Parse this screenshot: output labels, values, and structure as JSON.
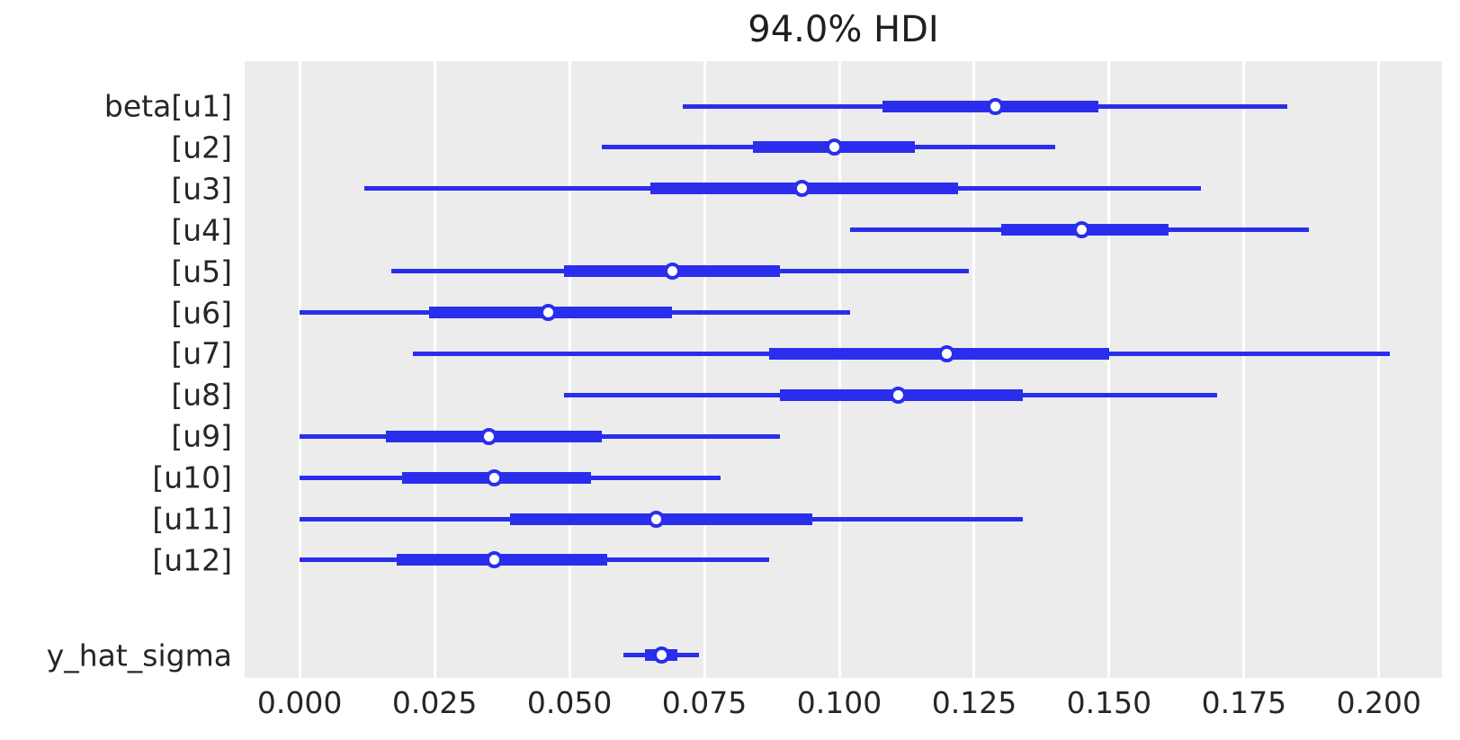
{
  "title": "94.0% HDI",
  "colors": {
    "line": "#2a2eec",
    "plot_background": "#ececec",
    "grid": "#ffffff",
    "text": "#262626",
    "figure_background": "#ffffff"
  },
  "chart_data": {
    "type": "forest",
    "title": "94.0% HDI",
    "orientation": "horizontal",
    "xlim": [
      -0.0102,
      0.2117
    ],
    "x_ticks": [
      0.0,
      0.025,
      0.05,
      0.075,
      0.1,
      0.125,
      0.15,
      0.175,
      0.2
    ],
    "x_tick_labels": [
      "0.000",
      "0.025",
      "0.050",
      "0.075",
      "0.100",
      "0.125",
      "0.150",
      "0.175",
      "0.200"
    ],
    "grid": "vertical white gridlines on gray panel",
    "legend": "none",
    "rows": [
      {
        "label": "beta[u1]",
        "hdi_94": [
          0.071,
          0.183
        ],
        "quartile": [
          0.108,
          0.148
        ],
        "median": 0.129
      },
      {
        "label": "[u2]",
        "hdi_94": [
          0.056,
          0.14
        ],
        "quartile": [
          0.084,
          0.114
        ],
        "median": 0.099
      },
      {
        "label": "[u3]",
        "hdi_94": [
          0.012,
          0.167
        ],
        "quartile": [
          0.065,
          0.122
        ],
        "median": 0.093
      },
      {
        "label": "[u4]",
        "hdi_94": [
          0.102,
          0.187
        ],
        "quartile": [
          0.13,
          0.161
        ],
        "median": 0.145
      },
      {
        "label": "[u5]",
        "hdi_94": [
          0.017,
          0.124
        ],
        "quartile": [
          0.049,
          0.089
        ],
        "median": 0.069
      },
      {
        "label": "[u6]",
        "hdi_94": [
          0.0,
          0.102
        ],
        "quartile": [
          0.024,
          0.069
        ],
        "median": 0.046
      },
      {
        "label": "[u7]",
        "hdi_94": [
          0.021,
          0.202
        ],
        "quartile": [
          0.087,
          0.15
        ],
        "median": 0.12
      },
      {
        "label": "[u8]",
        "hdi_94": [
          0.049,
          0.17
        ],
        "quartile": [
          0.089,
          0.134
        ],
        "median": 0.111
      },
      {
        "label": "[u9]",
        "hdi_94": [
          0.0,
          0.089
        ],
        "quartile": [
          0.016,
          0.056
        ],
        "median": 0.035
      },
      {
        "label": "[u10]",
        "hdi_94": [
          0.0,
          0.078
        ],
        "quartile": [
          0.019,
          0.054
        ],
        "median": 0.036
      },
      {
        "label": "[u11]",
        "hdi_94": [
          0.0,
          0.134
        ],
        "quartile": [
          0.039,
          0.095
        ],
        "median": 0.066
      },
      {
        "label": "[u12]",
        "hdi_94": [
          0.0,
          0.087
        ],
        "quartile": [
          0.018,
          0.057
        ],
        "median": 0.036
      },
      {
        "label": "y_hat_sigma",
        "hdi_94": [
          0.06,
          0.074
        ],
        "quartile": [
          0.064,
          0.07
        ],
        "median": 0.067
      }
    ]
  }
}
